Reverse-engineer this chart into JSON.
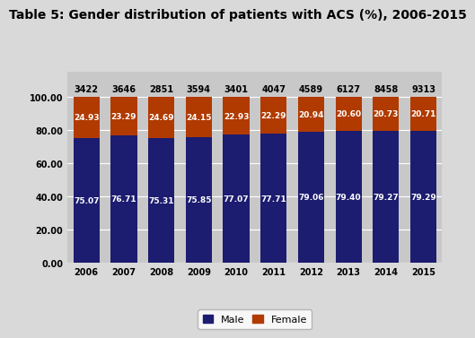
{
  "title": "Table 5: Gender distribution of patients with ACS (%), 2006-2015",
  "years": [
    2006,
    2007,
    2008,
    2009,
    2010,
    2011,
    2012,
    2013,
    2014,
    2015
  ],
  "totals": [
    3422,
    3646,
    2851,
    3594,
    3401,
    4047,
    4589,
    6127,
    8458,
    9313
  ],
  "male_pct": [
    75.07,
    76.71,
    75.31,
    75.85,
    77.07,
    77.71,
    79.06,
    79.4,
    79.27,
    79.29
  ],
  "female_pct": [
    24.93,
    23.29,
    24.69,
    24.15,
    22.93,
    22.29,
    20.94,
    20.6,
    20.73,
    20.71
  ],
  "male_color": "#1c1c70",
  "female_color": "#b03a00",
  "bg_color": "#d9d9d9",
  "plot_bg_color": "#c8c8c8",
  "title_fontsize": 10,
  "bar_label_fontsize": 6.5,
  "total_label_fontsize": 7,
  "tick_fontsize": 7,
  "legend_fontsize": 8,
  "ylim": [
    0,
    100
  ],
  "yticks": [
    0.0,
    20.0,
    40.0,
    60.0,
    80.0,
    100.0
  ],
  "xlabel": "",
  "ylabel": ""
}
